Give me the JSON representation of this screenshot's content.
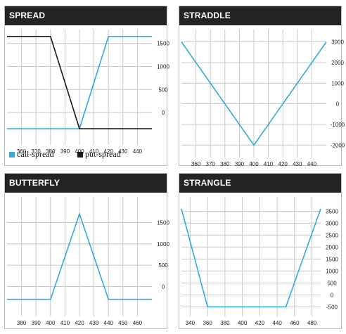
{
  "colors": {
    "call": "#33aadd",
    "put": "#1a1a1a",
    "grid": "#c8c8c8",
    "title_bg": "#232323"
  },
  "legend": {
    "call_label": "call-spread",
    "put_label": "put-spread"
  },
  "chart_data": [
    {
      "id": "spread",
      "type": "line",
      "title": "SPREAD",
      "xlim": [
        350,
        450
      ],
      "ylim": [
        -700,
        1800
      ],
      "xticks": [
        360,
        370,
        380,
        390,
        400,
        410,
        420,
        430,
        440
      ],
      "yticks": [
        0,
        500,
        1000,
        1500
      ],
      "series": [
        {
          "name": "call-spread",
          "color_key": "call",
          "x": [
            350,
            400,
            420,
            450
          ],
          "y": [
            -350,
            -350,
            1650,
            1650
          ]
        },
        {
          "name": "put-spread",
          "color_key": "put",
          "x": [
            350,
            380,
            400,
            450
          ],
          "y": [
            1650,
            1650,
            -350,
            -350
          ]
        }
      ]
    },
    {
      "id": "straddle",
      "type": "line",
      "title": "STRADDLE",
      "xlim": [
        350,
        450
      ],
      "ylim": [
        -2600,
        3600
      ],
      "xticks": [
        360,
        370,
        380,
        390,
        400,
        410,
        420,
        430,
        440
      ],
      "yticks": [
        -2000,
        -1000,
        0,
        1000,
        2000,
        3000
      ],
      "series": [
        {
          "name": "",
          "color_key": "call",
          "x": [
            350,
            400,
            450
          ],
          "y": [
            3000,
            -2000,
            3000
          ]
        }
      ]
    },
    {
      "id": "butterfly",
      "type": "line",
      "title": "BUTTERFLY",
      "xlim": [
        370,
        470
      ],
      "ylim": [
        -700,
        2100
      ],
      "xticks": [
        380,
        390,
        400,
        410,
        420,
        430,
        440,
        450,
        460
      ],
      "yticks": [
        0,
        500,
        1000,
        1500
      ],
      "series": [
        {
          "name": "",
          "color_key": "call",
          "x": [
            370,
            400,
            420,
            440,
            470
          ],
          "y": [
            -300,
            -300,
            1700,
            -300,
            -300
          ]
        }
      ]
    },
    {
      "id": "strangle",
      "type": "line",
      "title": "STRANGLE",
      "xlim": [
        330,
        490
      ],
      "ylim": [
        -900,
        4100
      ],
      "xticks": [
        340,
        360,
        380,
        400,
        420,
        440,
        460,
        480
      ],
      "yticks": [
        -500,
        0,
        500,
        1000,
        1500,
        2000,
        2500,
        3000,
        3500
      ],
      "series": [
        {
          "name": "",
          "color_key": "call",
          "x": [
            330,
            360,
            450,
            490
          ],
          "y": [
            3600,
            -500,
            -500,
            3600
          ]
        }
      ]
    }
  ]
}
